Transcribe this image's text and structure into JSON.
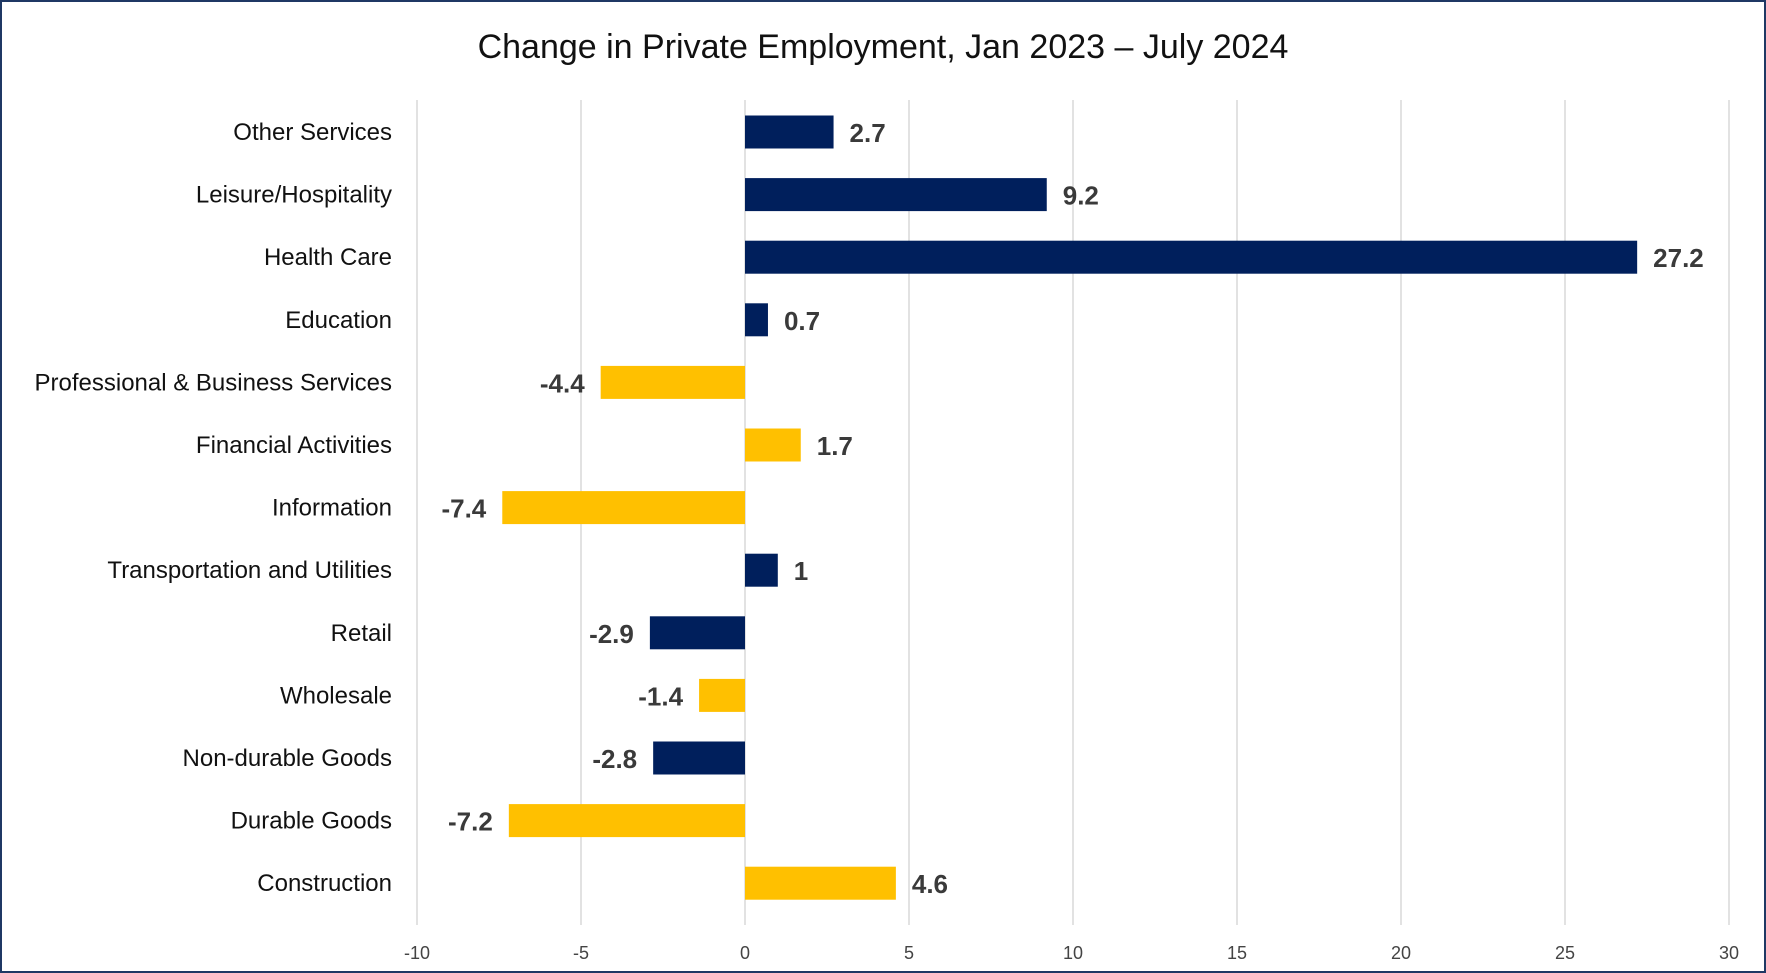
{
  "chart_data": {
    "type": "bar",
    "orientation": "horizontal",
    "title": "Change in Private Employment, Jan 2023 – July 2024",
    "xlabel": "",
    "ylabel": "",
    "xlim": [
      -10,
      30
    ],
    "x_ticks": [
      -10,
      -5,
      0,
      5,
      10,
      15,
      20,
      25,
      30
    ],
    "grid": true,
    "legend": "none",
    "colors": {
      "navy": "#001f5c",
      "gold": "#ffc000"
    },
    "categories": [
      "Other Services",
      "Leisure/Hospitality",
      "Health Care",
      "Education",
      "Professional & Business Services",
      "Financial Activities",
      "Information",
      "Transportation and Utilities",
      "Retail",
      "Wholesale",
      "Non-durable Goods",
      "Durable Goods",
      "Construction"
    ],
    "values": [
      2.7,
      9.2,
      27.2,
      0.7,
      -4.4,
      1.7,
      -7.4,
      1,
      -2.9,
      -1.4,
      -2.8,
      -7.2,
      4.6
    ],
    "bar_colors": [
      "navy",
      "navy",
      "navy",
      "navy",
      "gold",
      "gold",
      "gold",
      "navy",
      "navy",
      "gold",
      "navy",
      "gold",
      "gold"
    ]
  }
}
